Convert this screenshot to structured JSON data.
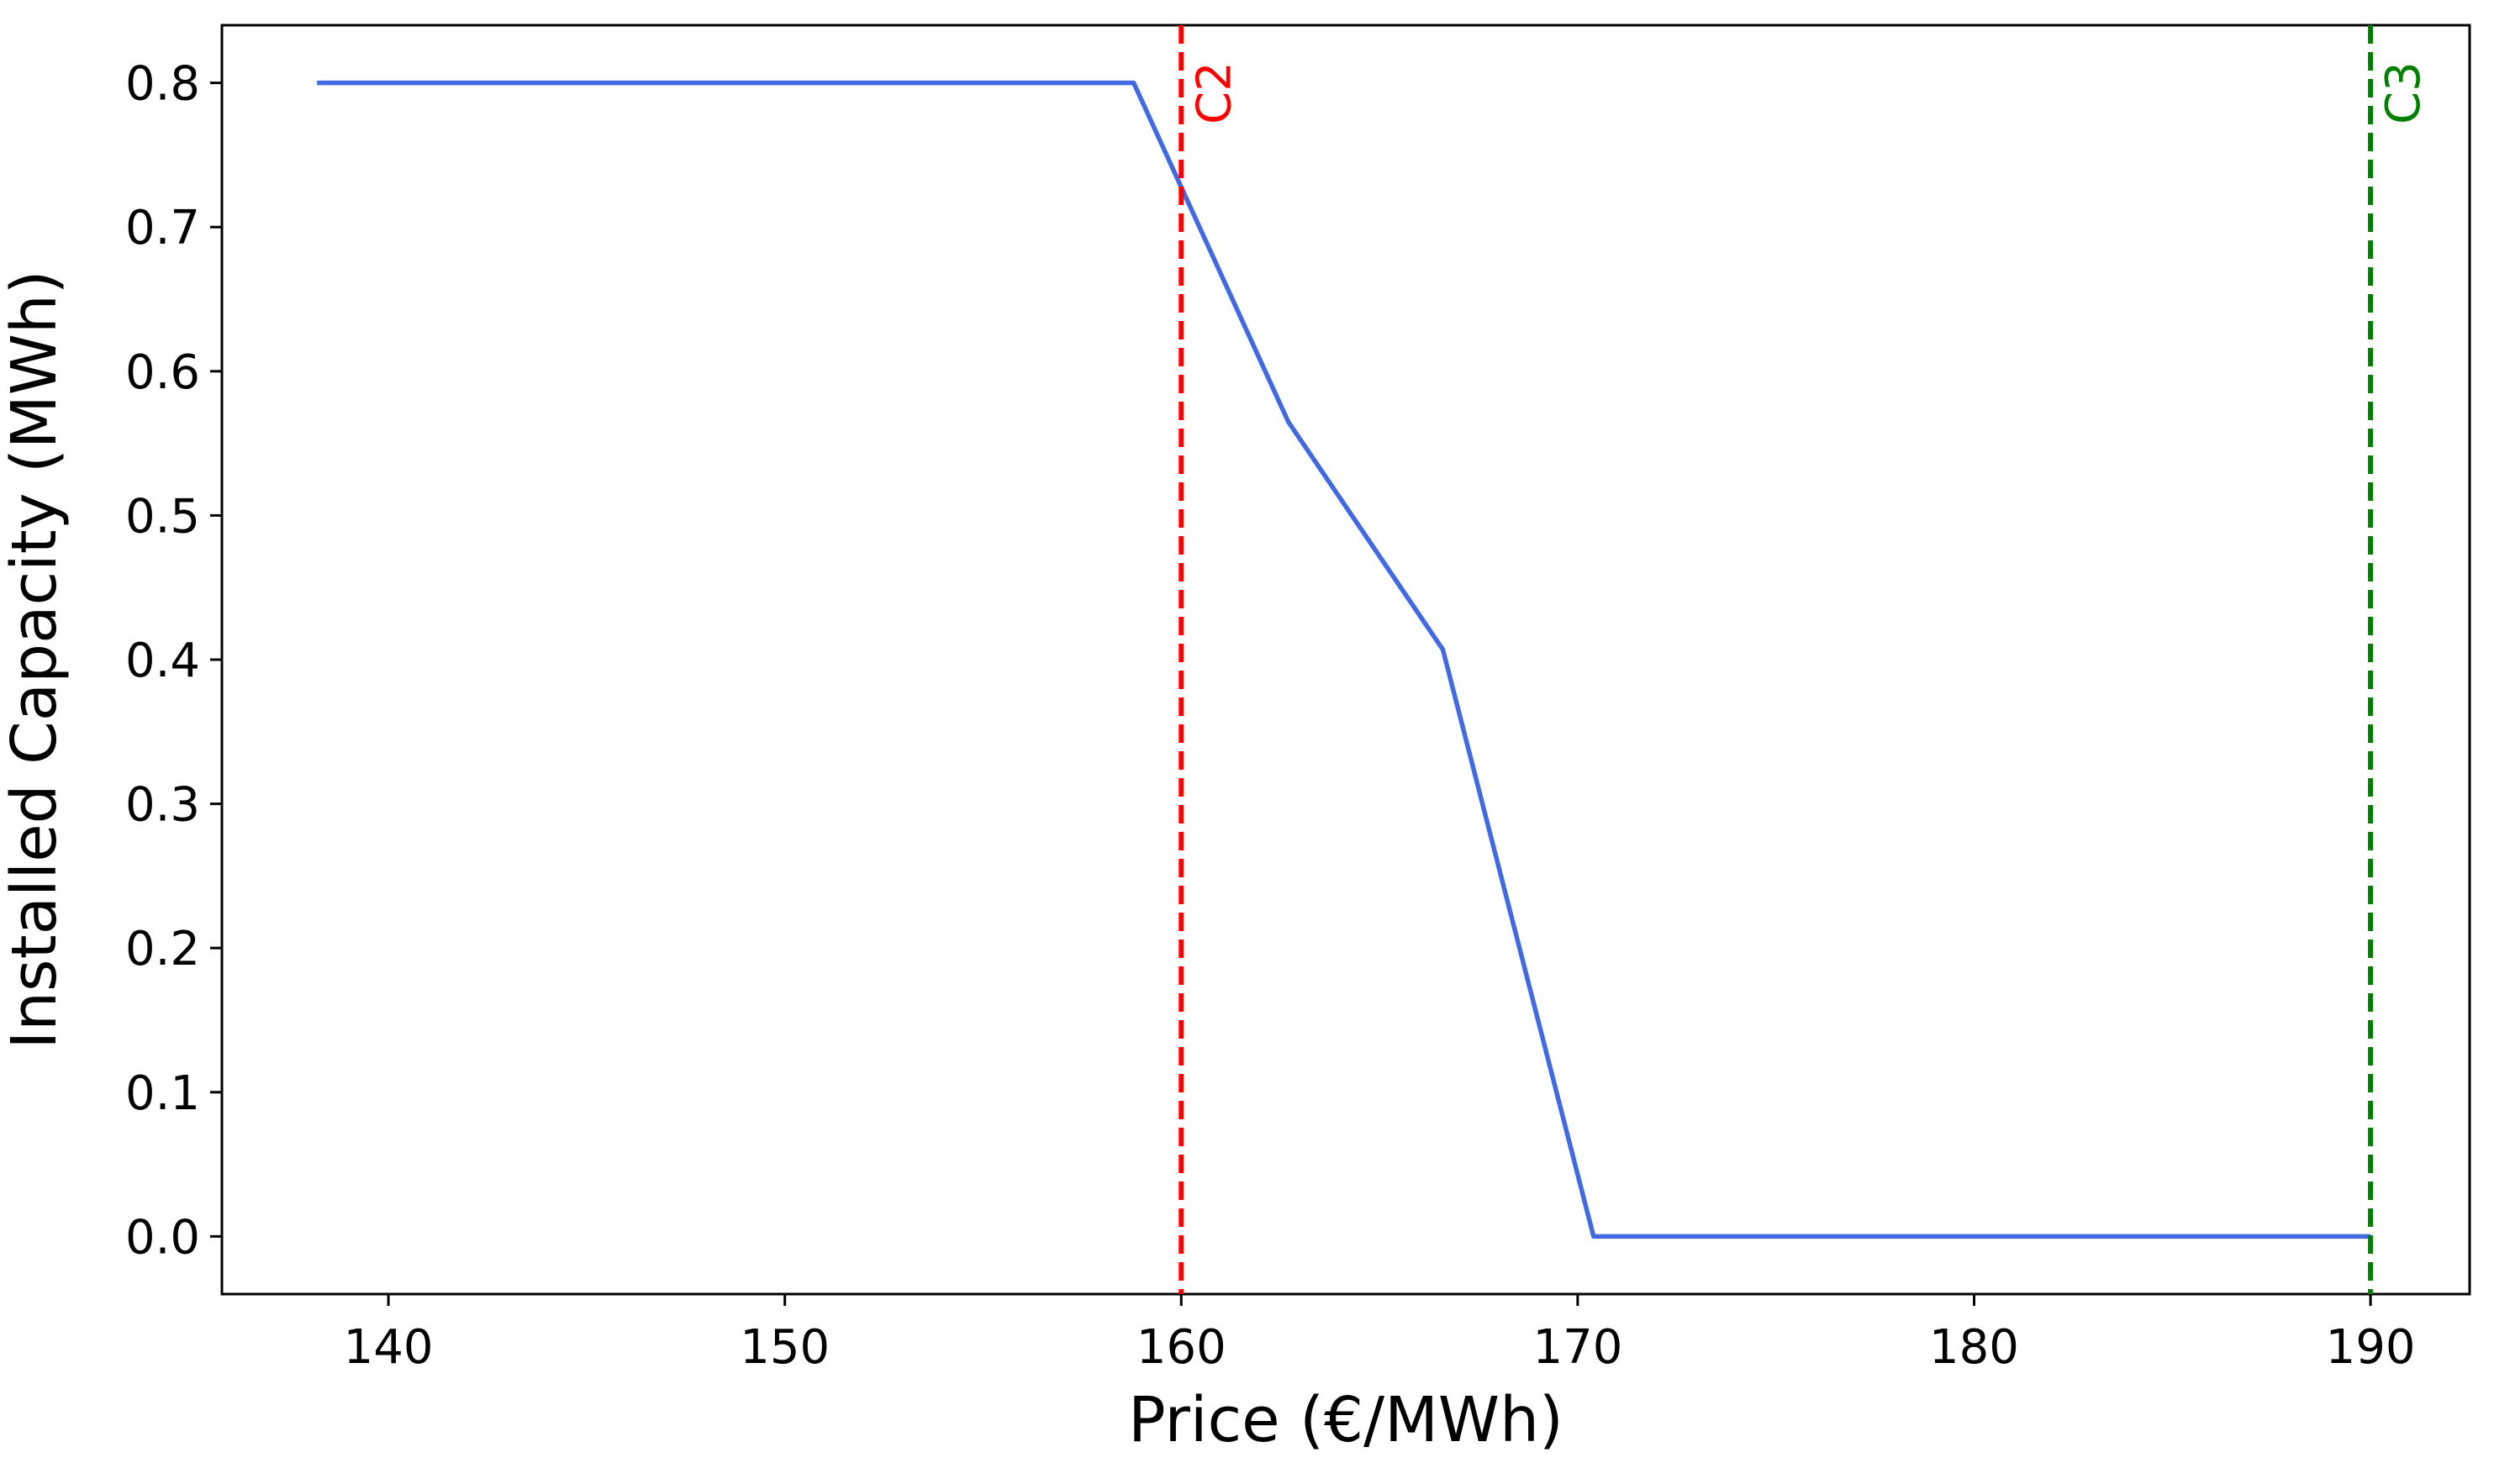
{
  "chart_data": {
    "type": "line",
    "title": "",
    "xlabel": "Price (€/MWh)",
    "ylabel": "Installed Capacity (MWh)",
    "xlim": [
      135.8,
      192.5
    ],
    "ylim": [
      -0.04,
      0.84
    ],
    "xticks": [
      140,
      150,
      160,
      170,
      180,
      190
    ],
    "xtick_labels": [
      "140",
      "150",
      "160",
      "170",
      "180",
      "190"
    ],
    "yticks": [
      0.0,
      0.1,
      0.2,
      0.3,
      0.4,
      0.5,
      0.6,
      0.7,
      0.8
    ],
    "ytick_labels": [
      "0.0",
      "0.1",
      "0.2",
      "0.3",
      "0.4",
      "0.5",
      "0.6",
      "0.7",
      "0.8"
    ],
    "grid": false,
    "series": [
      {
        "color": "#4169e1",
        "x": [
          138.2,
          158.8,
          162.7,
          166.6,
          170.4,
          190.0
        ],
        "y": [
          0.8,
          0.8,
          0.565,
          0.407,
          0.0,
          0.0
        ]
      }
    ],
    "vertical_lines": [
      {
        "x": 160,
        "label": "C2",
        "color": "#ff0000",
        "style": "dashed"
      },
      {
        "x": 190,
        "label": "C3",
        "color": "#008000",
        "style": "dashed"
      }
    ]
  }
}
